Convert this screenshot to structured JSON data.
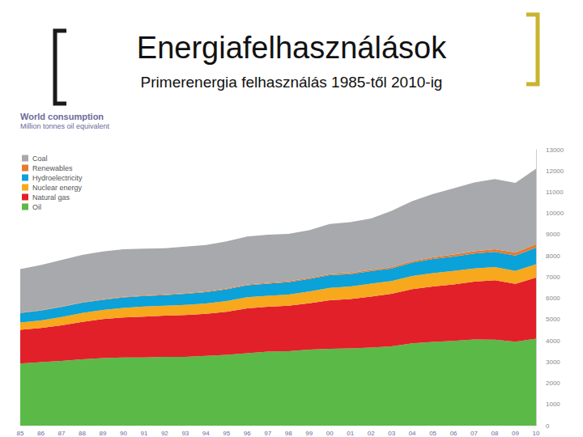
{
  "chart_data": {
    "type": "area",
    "title": "Energiafelhasználások",
    "subtitle": "Primerenergia felhasználás 1985-től 2010-ig",
    "annotations": [
      "World consumption"
    ],
    "ylabel": "Million tonnes oil equivalent",
    "stacked": true,
    "grid": false,
    "legend": "upper left",
    "categories": [
      "85",
      "86",
      "87",
      "88",
      "89",
      "90",
      "91",
      "92",
      "93",
      "94",
      "95",
      "96",
      "97",
      "98",
      "99",
      "00",
      "01",
      "02",
      "03",
      "04",
      "05",
      "06",
      "07",
      "08",
      "09",
      "10"
    ],
    "series": [
      {
        "name": "Coal",
        "color": "#a7a9ac",
        "values": [
          2050,
          2130,
          2190,
          2230,
          2250,
          2240,
          2200,
          2180,
          2190,
          2180,
          2220,
          2260,
          2260,
          2230,
          2250,
          2360,
          2390,
          2420,
          2650,
          2830,
          2980,
          3120,
          3240,
          3300,
          3280,
          3550
        ]
      },
      {
        "name": "Renewables",
        "color": "#e8792e",
        "values": [
          20,
          22,
          24,
          26,
          28,
          30,
          32,
          33,
          35,
          37,
          39,
          40,
          43,
          45,
          48,
          51,
          54,
          60,
          64,
          70,
          80,
          92,
          105,
          125,
          140,
          160
        ]
      },
      {
        "name": "Hydroelectricity",
        "color": "#0ba1d9",
        "values": [
          450,
          460,
          470,
          480,
          480,
          490,
          500,
          500,
          520,
          530,
          550,
          560,
          570,
          580,
          590,
          600,
          580,
          590,
          600,
          630,
          660,
          680,
          700,
          720,
          730,
          780
        ]
      },
      {
        "name": "Nuclear energy",
        "color": "#f8a81c",
        "values": [
          340,
          360,
          390,
          420,
          430,
          450,
          470,
          470,
          480,
          490,
          500,
          520,
          520,
          530,
          550,
          580,
          590,
          610,
          600,
          620,
          630,
          640,
          620,
          620,
          610,
          630
        ]
      },
      {
        "name": "Natural gas",
        "color": "#e2202a",
        "values": [
          1590,
          1610,
          1680,
          1760,
          1840,
          1890,
          1930,
          1940,
          1970,
          1980,
          2030,
          2120,
          2110,
          2140,
          2190,
          2290,
          2330,
          2400,
          2470,
          2550,
          2610,
          2660,
          2730,
          2800,
          2720,
          2880
        ]
      },
      {
        "name": "Oil",
        "color": "#5bb947",
        "values": [
          2930,
          2990,
          3050,
          3130,
          3180,
          3210,
          3210,
          3240,
          3240,
          3290,
          3340,
          3410,
          3490,
          3510,
          3580,
          3620,
          3640,
          3680,
          3740,
          3880,
          3950,
          3990,
          4060,
          4050,
          3960,
          4100
        ]
      }
    ],
    "ylim": [
      0,
      13000
    ],
    "yticks": [
      0,
      1000,
      2000,
      3000,
      4000,
      5000,
      6000,
      7000,
      8000,
      9000,
      10000,
      11000,
      12000,
      13000
    ]
  }
}
